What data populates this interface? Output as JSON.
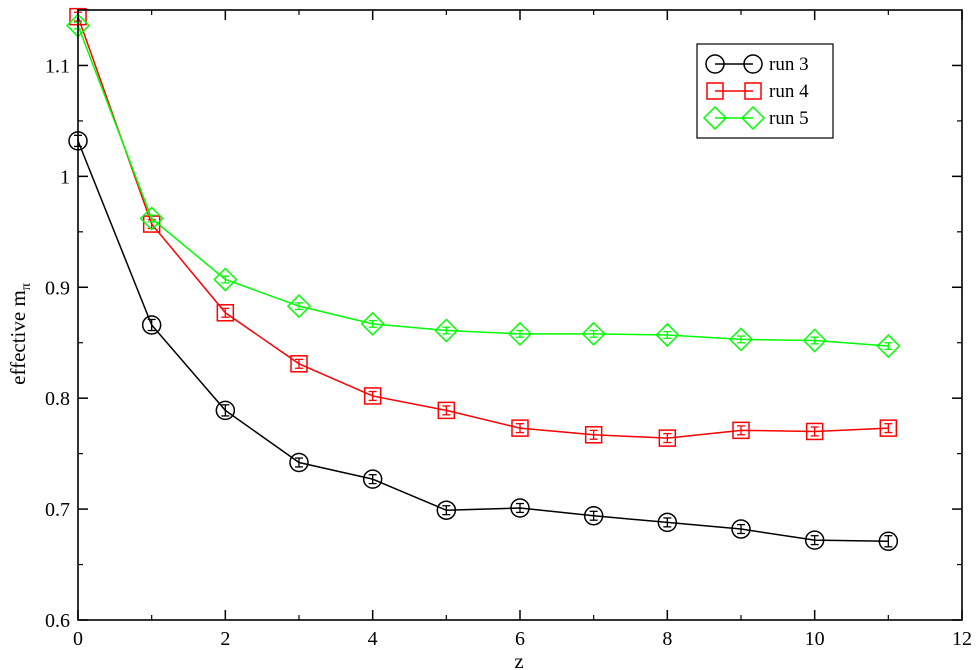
{
  "chart_data": {
    "type": "line",
    "title": "",
    "xlabel": "z",
    "ylabel": "effective m",
    "ylabel_subscript": "π",
    "xlim": [
      0,
      12
    ],
    "ylim": [
      0.6,
      1.15
    ],
    "x_ticks": [
      0,
      2,
      4,
      6,
      8,
      10,
      12
    ],
    "x_tick_labels": [
      "0",
      "2",
      "4",
      "6",
      "8",
      "10",
      "12"
    ],
    "y_ticks": [
      0.6,
      0.7,
      0.8,
      0.9,
      1.0,
      1.1
    ],
    "y_tick_labels": [
      "0.6",
      "0.7",
      "0.8",
      "0.9",
      "1",
      "1.1"
    ],
    "grid": false,
    "legend_position": "top-right",
    "x": [
      0,
      1,
      2,
      3,
      4,
      5,
      6,
      7,
      8,
      9,
      10,
      11
    ],
    "series": [
      {
        "name": "run 3",
        "color": "#000000",
        "marker": "circle",
        "values": [
          1.032,
          0.866,
          0.789,
          0.742,
          0.727,
          0.699,
          0.701,
          0.694,
          0.688,
          0.682,
          0.672,
          0.671
        ],
        "errors": [
          0.005,
          0.005,
          0.005,
          0.004,
          0.004,
          0.004,
          0.004,
          0.004,
          0.004,
          0.004,
          0.004,
          0.005
        ]
      },
      {
        "name": "run 4",
        "color": "#ff0000",
        "marker": "square",
        "values": [
          1.144,
          0.957,
          0.877,
          0.831,
          0.802,
          0.789,
          0.773,
          0.767,
          0.764,
          0.771,
          0.77,
          0.773
        ],
        "errors": [
          0.004,
          0.004,
          0.004,
          0.004,
          0.004,
          0.004,
          0.004,
          0.004,
          0.004,
          0.004,
          0.004,
          0.004
        ]
      },
      {
        "name": "run 5",
        "color": "#00ff00",
        "marker": "diamond",
        "values": [
          1.136,
          0.962,
          0.907,
          0.883,
          0.867,
          0.861,
          0.858,
          0.858,
          0.857,
          0.853,
          0.852,
          0.847
        ],
        "errors": [
          0.003,
          0.003,
          0.003,
          0.003,
          0.003,
          0.003,
          0.003,
          0.003,
          0.003,
          0.003,
          0.003,
          0.003
        ]
      }
    ]
  }
}
